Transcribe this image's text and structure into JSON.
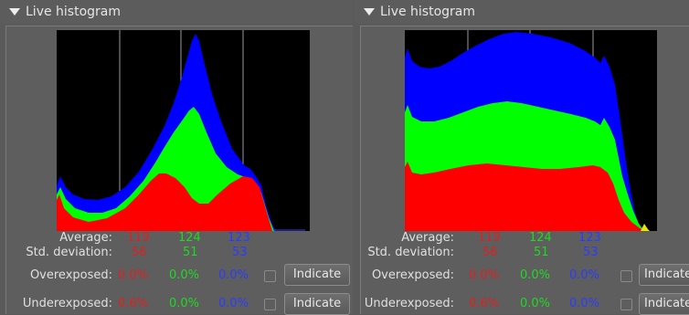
{
  "panels": [
    {
      "title": "Live histogram",
      "stats": {
        "average_label": "Average:",
        "average": {
          "r": "119",
          "g": "124",
          "b": "123"
        },
        "std_label": "Std. deviation:",
        "std": {
          "r": "56",
          "g": "51",
          "b": "53"
        },
        "overexposed_label": "Overexposed:",
        "overexposed": {
          "r": "0.0%",
          "g": "0.0%",
          "b": "0.0%"
        },
        "underexposed_label": "Underexposed:",
        "underexposed": {
          "r": "0.6%",
          "g": "0.0%",
          "b": "0.0%"
        }
      },
      "indicate_label": "Indicate"
    },
    {
      "title": "Live histogram",
      "stats": {
        "average_label": "Average:",
        "average": {
          "r": "119",
          "g": "124",
          "b": "123"
        },
        "std_label": "Std. deviation:",
        "std": {
          "r": "56",
          "g": "51",
          "b": "53"
        },
        "overexposed_label": "Overexposed:",
        "overexposed": {
          "r": "0.0%",
          "g": "0.0%",
          "b": "0.0%"
        },
        "underexposed_label": "Underexposed:",
        "underexposed": {
          "r": "0.6%",
          "g": "0.0%",
          "b": "0.0%"
        }
      },
      "indicate_label": "Indicate"
    }
  ],
  "colors": {
    "red": "#ff0000",
    "green": "#00ff00",
    "blue": "#0000ff",
    "background": "#000000"
  }
}
